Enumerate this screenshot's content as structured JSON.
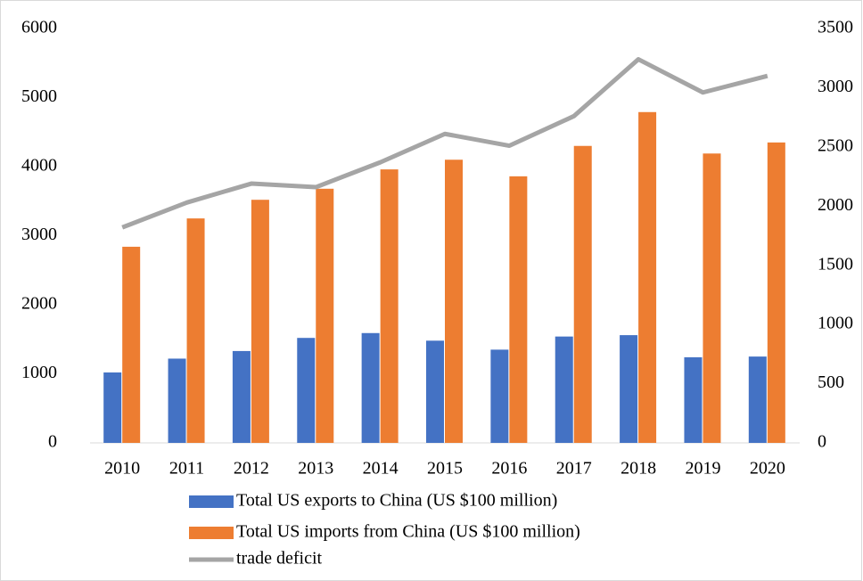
{
  "chart_data": {
    "type": "bar",
    "categories": [
      "2010",
      "2011",
      "2012",
      "2013",
      "2014",
      "2015",
      "2016",
      "2017",
      "2018",
      "2019",
      "2020"
    ],
    "series": [
      {
        "name": "Total US exports to China (US $100 million)",
        "color": "#4472c4",
        "values": [
          1020,
          1220,
          1330,
          1520,
          1590,
          1480,
          1350,
          1540,
          1560,
          1240,
          1250
        ]
      },
      {
        "name": "Total US imports from China (US $100 million)",
        "color": "#ed7d31",
        "values": [
          2840,
          3250,
          3520,
          3680,
          3960,
          4100,
          3860,
          4300,
          4790,
          4190,
          4350
        ]
      },
      {
        "name": "trade deficit",
        "color": "#a5a5a5",
        "type": "line",
        "axis": "y2",
        "values": [
          1820,
          2030,
          2190,
          2160,
          2370,
          2610,
          2510,
          2760,
          3240,
          2960,
          3100
        ]
      }
    ],
    "ylim": [
      0,
      6000
    ],
    "yticks": [
      0,
      1000,
      2000,
      3000,
      4000,
      5000,
      6000
    ],
    "y2lim": [
      0,
      3500
    ],
    "y2ticks": [
      0,
      500,
      1000,
      1500,
      2000,
      2500,
      3000,
      3500
    ],
    "legend": "bottom"
  }
}
